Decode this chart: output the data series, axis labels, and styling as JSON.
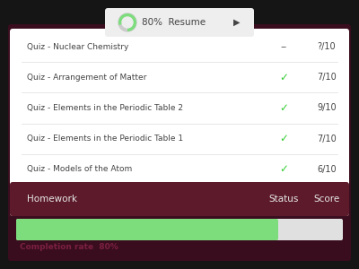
{
  "bg_color": "#151515",
  "title_text": "Completion rate  80%",
  "title_color": "#7a2040",
  "progress_bg": "#e0e0e0",
  "progress_fill": "#7ddd7d",
  "progress_pct": 0.8,
  "table_bg": "#ffffff",
  "header_bg": "#5c1a2a",
  "header_text_color": "#e8e8e8",
  "row_text_color": "#444444",
  "card_bg": "#3a0d1e",
  "headers": [
    "Homework",
    "Status",
    "Score"
  ],
  "rows": [
    [
      "Quiz - Models of the Atom",
      "✓",
      "6/10"
    ],
    [
      "Quiz - Elements in the Periodic Table 1",
      "✓",
      "7/10"
    ],
    [
      "Quiz - Elements in the Periodic Table 2",
      "✓",
      "9/10"
    ],
    [
      "Quiz - Arrangement of Matter",
      "✓",
      "7/10"
    ],
    [
      "Quiz - Nuclear Chemistry",
      "–",
      "?/10"
    ]
  ],
  "check_color": "#33cc33",
  "dash_color": "#666666",
  "bottom_btn_bg": "#eeeeee",
  "bottom_btn_text_color": "#444444",
  "circle_color": "#7ddd7d",
  "circle_bg": "#cccccc"
}
